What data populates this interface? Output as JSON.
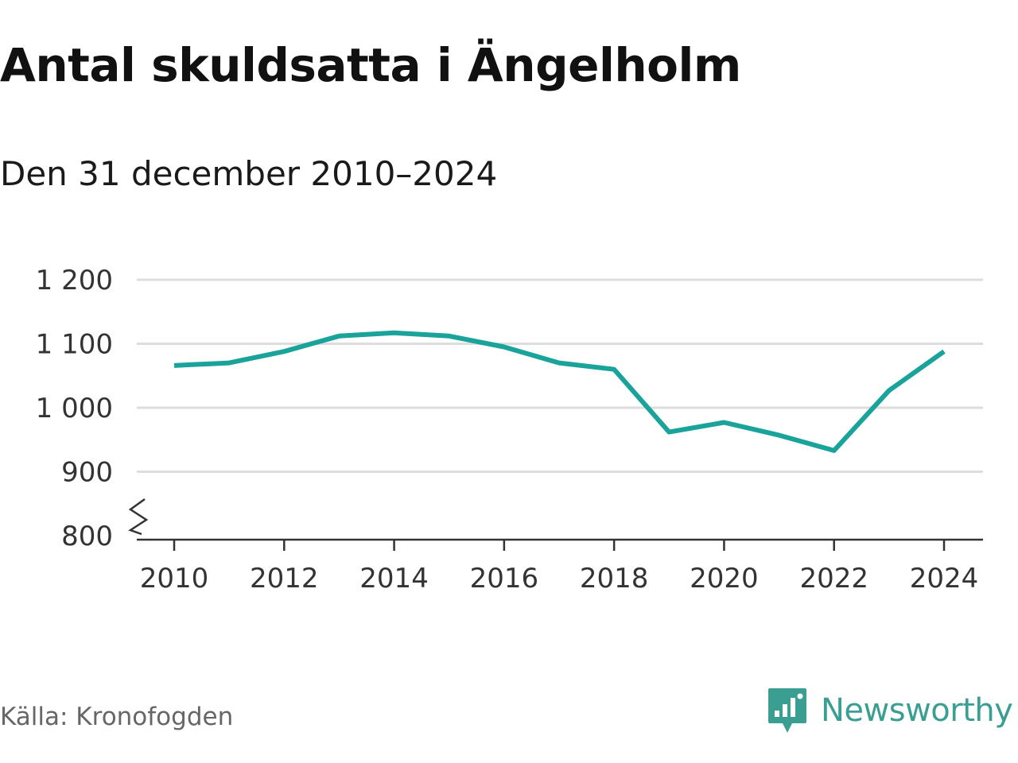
{
  "title": "Antal skuldsatta i Ängelholm",
  "subtitle": "Den 31 december 2010–2024",
  "source": "Källa: Kronofogden",
  "brand": {
    "name": "Newsworthy",
    "logo_icon": "newsworthy-logo-icon",
    "color": "#3a9e93"
  },
  "chart_data": {
    "type": "line",
    "title": "Antal skuldsatta i Ängelholm",
    "subtitle": "Den 31 december 2010–2024",
    "x": [
      2010,
      2011,
      2012,
      2013,
      2014,
      2015,
      2016,
      2017,
      2018,
      2019,
      2020,
      2021,
      2022,
      2023,
      2024
    ],
    "series": [
      {
        "values": [
          1066,
          1070,
          1088,
          1112,
          1117,
          1112,
          1095,
          1070,
          1060,
          962,
          977,
          957,
          933,
          1027,
          1088
        ],
        "color": "#19a39a"
      }
    ],
    "x_ticks": [
      "2010",
      "2012",
      "2014",
      "2016",
      "2018",
      "2020",
      "2022",
      "2024"
    ],
    "y_ticks": [
      {
        "value": 800,
        "label": "800"
      },
      {
        "value": 900,
        "label": "900"
      },
      {
        "value": 1000,
        "label": "1 000"
      },
      {
        "value": 1100,
        "label": "1 100"
      },
      {
        "value": 1200,
        "label": "1 200"
      }
    ],
    "xlim": [
      2010,
      2024
    ],
    "ylim": [
      800,
      1200
    ],
    "y_axis_break": true,
    "grid": true,
    "xlabel": "",
    "ylabel": ""
  }
}
